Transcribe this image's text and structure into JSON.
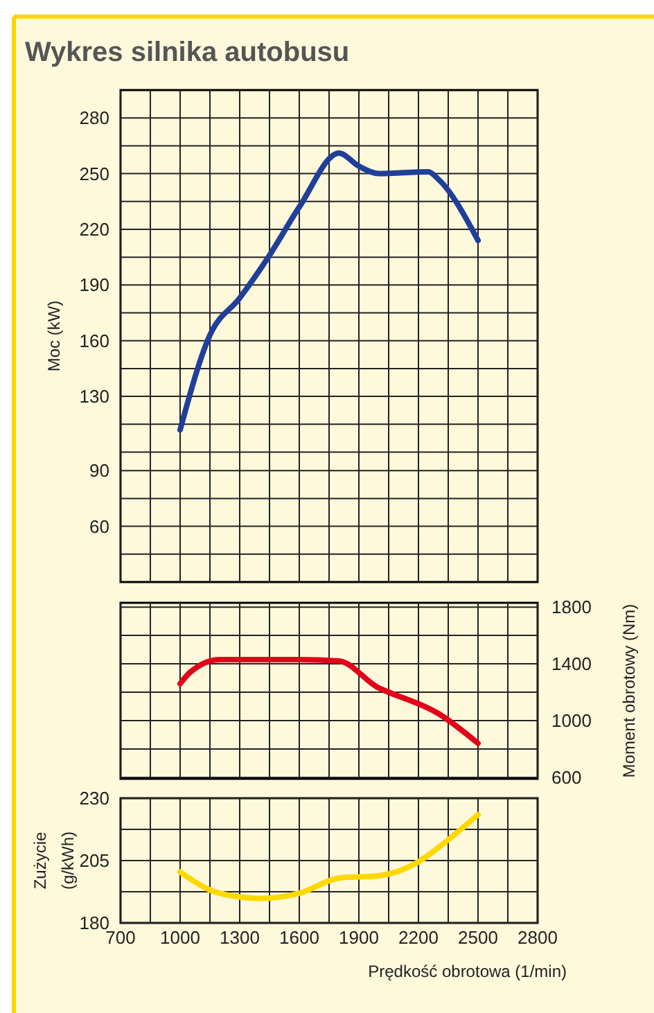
{
  "chart_data": [
    {
      "type": "line",
      "title": "Wykres silnika autobusu",
      "ylabel": "Moc (kW)",
      "tick_labels": "y",
      "grid": true,
      "xlim": [
        700,
        2800
      ],
      "xticks": [
        700,
        {
          "value": 850,
          "label": null
        },
        1000,
        {
          "value": 1150,
          "label": null
        },
        1300,
        {
          "value": 1450,
          "label": null
        },
        1600,
        {
          "value": 1750,
          "label": null
        },
        1900,
        {
          "value": 2050,
          "label": null
        },
        2200,
        {
          "value": 2350,
          "label": null
        },
        2500,
        {
          "value": 2650,
          "label": null
        },
        2800
      ],
      "ylim": [
        30,
        295
      ],
      "yticks": [
        {
          "value": 45,
          "label": null
        },
        60,
        {
          "value": 75,
          "label": null
        },
        90,
        {
          "value": 100,
          "label": null
        },
        {
          "value": 115,
          "label": null
        },
        130,
        {
          "value": 145,
          "label": null
        },
        160,
        {
          "value": 175,
          "label": null
        },
        190,
        {
          "value": 205,
          "label": null
        },
        220,
        {
          "value": 235,
          "label": null
        },
        250,
        {
          "value": 265,
          "label": null
        },
        280
      ],
      "series": [
        {
          "color": "#1f3f99",
          "x": [
            1000,
            1150,
            1300,
            1450,
            1600,
            1800,
            1900,
            2000,
            2250,
            2300,
            2500
          ],
          "values": [
            112,
            163,
            183,
            206,
            232,
            261,
            254,
            250,
            251,
            247,
            214
          ]
        }
      ]
    },
    {
      "type": "line",
      "ylabel": "Moment obrotowy (Nm)",
      "tick_labels": "y",
      "grid": true,
      "xlim": [
        700,
        2800
      ],
      "xticks": [
        700,
        {
          "value": 850,
          "label": null
        },
        1000,
        {
          "value": 1150,
          "label": null
        },
        1300,
        {
          "value": 1450,
          "label": null
        },
        1600,
        {
          "value": 1750,
          "label": null
        },
        1900,
        {
          "value": 2050,
          "label": null
        },
        2200,
        {
          "value": 2350,
          "label": null
        },
        2500,
        {
          "value": 2650,
          "label": null
        },
        2800
      ],
      "ylim": [
        590,
        1830
      ],
      "yticks": [
        600,
        {
          "value": 800,
          "label": null
        },
        1000,
        {
          "value": 1200,
          "label": null
        },
        1400,
        {
          "value": 1600,
          "label": null
        },
        1800
      ],
      "series": [
        {
          "color": "#e3001b",
          "x": [
            1000,
            1050,
            1200,
            1600,
            1800,
            2000,
            2050,
            2300,
            2500
          ],
          "values": [
            1260,
            1340,
            1430,
            1430,
            1420,
            1230,
            1200,
            1050,
            840
          ]
        }
      ]
    },
    {
      "type": "line",
      "ylabel": "Zużycie\n(g/kWh)",
      "xlabel": "Prędkość obrotowa (1/min)",
      "grid": true,
      "xlim": [
        700,
        2800
      ],
      "xticks": [
        700,
        {
          "value": 850,
          "label": null
        },
        1000,
        {
          "value": 1150,
          "label": null
        },
        1300,
        {
          "value": 1450,
          "label": null
        },
        1600,
        {
          "value": 1750,
          "label": null
        },
        1900,
        {
          "value": 2050,
          "label": null
        },
        2200,
        {
          "value": 2350,
          "label": null
        },
        2500,
        {
          "value": 2650,
          "label": null
        },
        2800
      ],
      "ylim": [
        180,
        230
      ],
      "yticks": [
        180,
        {
          "value": 192.5,
          "label": null
        },
        205,
        {
          "value": 217.5,
          "label": null
        },
        230
      ],
      "series": [
        {
          "color": "#ffd800",
          "x": [
            1000,
            1150,
            1300,
            1400,
            1600,
            1800,
            2000,
            2200,
            2300,
            2500
          ],
          "values": [
            200.4,
            193.2,
            190.4,
            189.8,
            191.9,
            198,
            198.9,
            204.5,
            210.2,
            223.4
          ]
        }
      ]
    }
  ]
}
